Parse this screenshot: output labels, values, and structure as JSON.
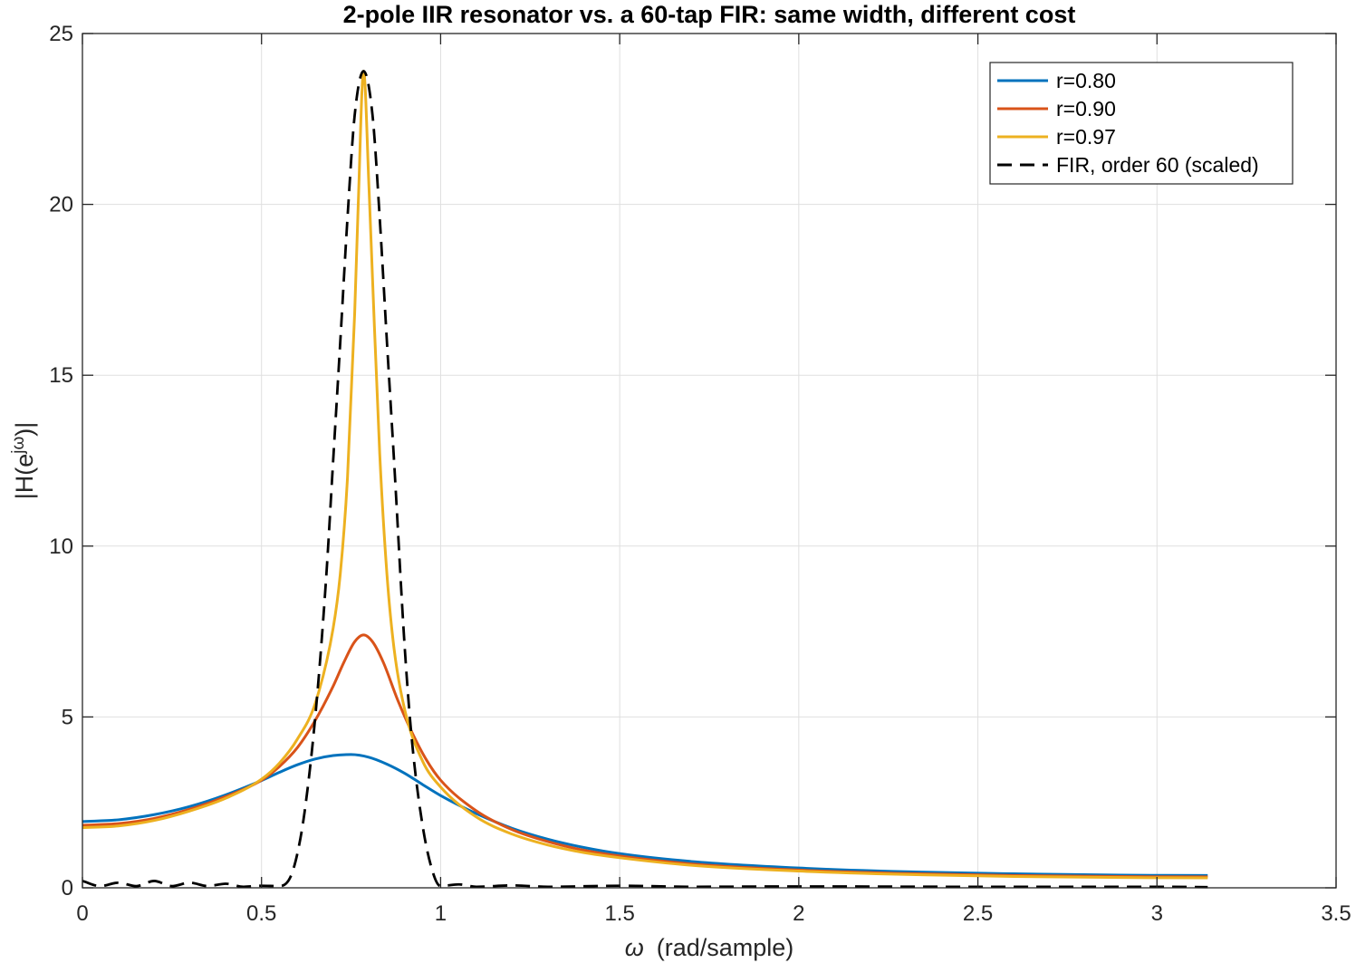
{
  "chart_data": {
    "type": "line",
    "title": "2-pole IIR resonator vs. a 60-tap FIR: same width, different cost",
    "xlabel": {
      "symbol": "ω",
      "text": "(rad/sample)"
    },
    "ylabel": {
      "base": "|H(e",
      "sup": "jω",
      "close": ")|"
    },
    "xlim": [
      0,
      3.5
    ],
    "ylim": [
      0,
      25
    ],
    "xticks": [
      0,
      0.5,
      1,
      1.5,
      2,
      2.5,
      3,
      3.5
    ],
    "xtick_labels": [
      "0",
      "0.5",
      "1",
      "1.5",
      "2",
      "2.5",
      "3",
      "3.5"
    ],
    "yticks": [
      0,
      5,
      10,
      15,
      20,
      25
    ],
    "ytick_labels": [
      "0",
      "5",
      "10",
      "15",
      "20",
      "25"
    ],
    "grid": true,
    "legend_position": "top-right",
    "series": [
      {
        "name": "r=0.80",
        "color": "#0072BD",
        "style": "solid",
        "x": [
          0,
          0.1,
          0.2,
          0.3,
          0.4,
          0.5,
          0.55,
          0.6,
          0.65,
          0.7,
          0.75,
          0.8,
          0.85,
          0.9,
          0.95,
          1.0,
          1.1,
          1.2,
          1.3,
          1.4,
          1.5,
          1.7,
          2.0,
          2.3,
          2.6,
          2.9,
          3.1416
        ],
        "y": [
          1.94,
          1.99,
          2.14,
          2.38,
          2.72,
          3.14,
          3.38,
          3.6,
          3.77,
          3.87,
          3.9,
          3.82,
          3.62,
          3.35,
          3.02,
          2.7,
          2.17,
          1.74,
          1.42,
          1.18,
          1.0,
          0.77,
          0.58,
          0.47,
          0.41,
          0.37,
          0.36
        ]
      },
      {
        "name": "r=0.90",
        "color": "#D95319",
        "style": "solid",
        "x": [
          0,
          0.1,
          0.2,
          0.3,
          0.4,
          0.5,
          0.55,
          0.6,
          0.65,
          0.7,
          0.73,
          0.76,
          0.785,
          0.81,
          0.84,
          0.88,
          0.92,
          0.96,
          1.0,
          1.1,
          1.2,
          1.3,
          1.4,
          1.5,
          1.7,
          2.0,
          2.3,
          2.6,
          2.9,
          3.1416
        ],
        "y": [
          1.83,
          1.88,
          2.03,
          2.3,
          2.67,
          3.15,
          3.55,
          4.1,
          4.9,
          5.9,
          6.6,
          7.2,
          7.4,
          7.2,
          6.6,
          5.5,
          4.55,
          3.75,
          3.15,
          2.25,
          1.7,
          1.35,
          1.1,
          0.93,
          0.7,
          0.52,
          0.42,
          0.36,
          0.33,
          0.32
        ]
      },
      {
        "name": "r=0.97",
        "color": "#EDB120",
        "style": "solid",
        "x": [
          0,
          0.1,
          0.2,
          0.3,
          0.4,
          0.5,
          0.55,
          0.6,
          0.65,
          0.7,
          0.72,
          0.74,
          0.76,
          0.77,
          0.785,
          0.8,
          0.81,
          0.83,
          0.85,
          0.87,
          0.9,
          0.95,
          1.0,
          1.1,
          1.2,
          1.3,
          1.4,
          1.5,
          1.7,
          2.0,
          2.3,
          2.6,
          2.9,
          3.1416
        ],
        "y": [
          1.76,
          1.81,
          1.97,
          2.25,
          2.62,
          3.18,
          3.65,
          4.35,
          5.4,
          7.6,
          9.2,
          12.0,
          16.8,
          20.0,
          23.9,
          20.5,
          17.8,
          12.7,
          9.2,
          7.0,
          5.2,
          3.7,
          2.95,
          2.07,
          1.57,
          1.25,
          1.03,
          0.88,
          0.66,
          0.49,
          0.39,
          0.33,
          0.3,
          0.29
        ]
      },
      {
        "name": "FIR, order 60 (scaled)",
        "color": "#000000",
        "style": "dashed",
        "x": [
          0,
          0.05,
          0.1,
          0.15,
          0.2,
          0.25,
          0.3,
          0.35,
          0.4,
          0.45,
          0.5,
          0.55,
          0.58,
          0.6,
          0.62,
          0.65,
          0.68,
          0.7,
          0.72,
          0.74,
          0.76,
          0.785,
          0.81,
          0.83,
          0.85,
          0.87,
          0.9,
          0.92,
          0.95,
          0.98,
          1.0,
          1.05,
          1.1,
          1.2,
          1.3,
          1.5,
          1.7,
          2.0,
          2.5,
          3.0,
          3.1416
        ],
        "y": [
          0.2,
          0.05,
          0.15,
          0.05,
          0.2,
          0.05,
          0.15,
          0.05,
          0.12,
          0.03,
          0.06,
          0.05,
          0.3,
          1.0,
          2.2,
          5.0,
          9.0,
          12.5,
          16.0,
          19.6,
          22.6,
          23.9,
          22.6,
          19.6,
          16.0,
          12.5,
          7.0,
          4.3,
          1.8,
          0.4,
          0.05,
          0.1,
          0.03,
          0.07,
          0.03,
          0.06,
          0.03,
          0.04,
          0.03,
          0.03,
          0.02
        ]
      }
    ]
  }
}
